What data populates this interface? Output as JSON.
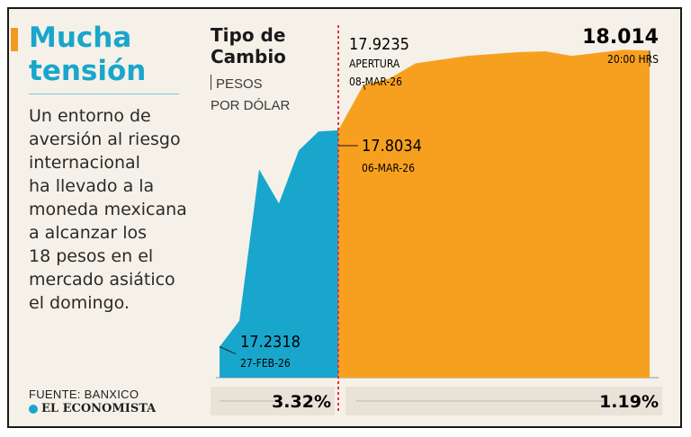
{
  "headline": {
    "line1": "Mucha",
    "line2": "tensión"
  },
  "intro_lines": [
    "Un entorno de",
    "aversión al riesgo",
    "internacional",
    "ha llevado a la",
    "moneda mexicana",
    "a alcanzar los",
    "18 pesos en el",
    "mercado asiático",
    "el domingo."
  ],
  "source": "FUENTE: BANXICO",
  "brand": "EL ECONOMISTA",
  "colors": {
    "pre": "#19a6cc",
    "post": "#f7a01f",
    "divider": "#e2343a",
    "headline": "#19a6cc",
    "accent": "#f29a1f"
  },
  "chart_data": {
    "type": "area",
    "title_line1": "Tipo de",
    "title_line2": "Cambio",
    "units_line1": "PESOS",
    "units_line2": "POR DÓLAR",
    "ylim": [
      17.15,
      18.1
    ],
    "segments": [
      {
        "name": "previo",
        "values": [
          17.2318,
          17.3,
          17.7,
          17.61,
          17.75,
          17.8,
          17.8034
        ]
      },
      {
        "name": "apertura",
        "values": [
          17.8034,
          17.9235,
          17.94,
          17.98,
          17.99,
          18.0,
          18.005,
          18.01,
          18.012,
          18.0,
          18.008,
          18.016,
          18.014
        ]
      }
    ],
    "annotations": {
      "start": {
        "value": "17.2318",
        "date": "27-FEB-26"
      },
      "close": {
        "value": "17.8034",
        "date": "06-MAR-26"
      },
      "open": {
        "value": "17.9235",
        "label": "APERTURA",
        "date": "08-MAR-26"
      },
      "last": {
        "value": "18.014",
        "time": "20:00 HRS"
      }
    },
    "changes": {
      "pre": "3.32%",
      "post": "1.19%"
    }
  }
}
